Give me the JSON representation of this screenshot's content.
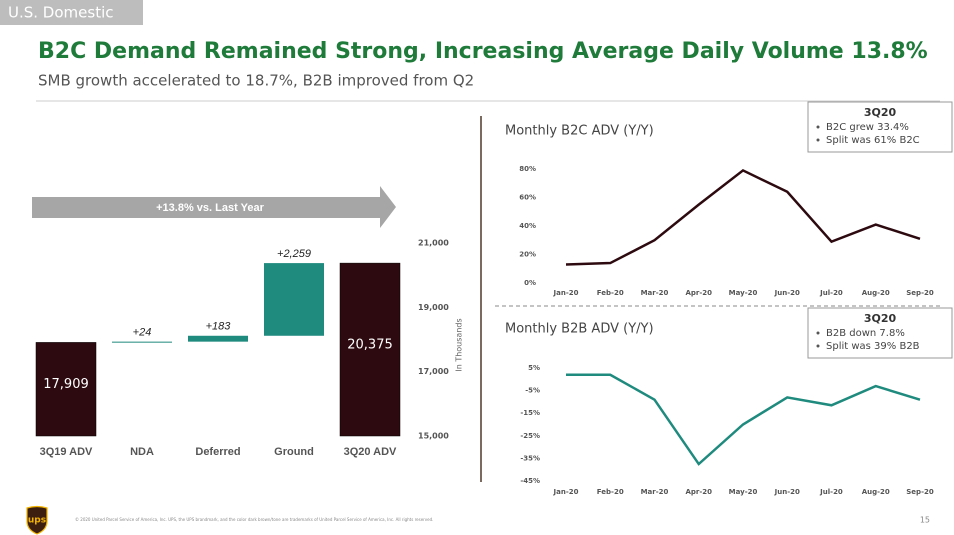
{
  "header": {
    "section": "U.S. Domestic",
    "title": "B2C Demand Remained Strong, Increasing Average Daily Volume 13.8%",
    "subtitle": "SMB growth accelerated to 18.7%, B2B improved from Q2"
  },
  "chart_data": [
    {
      "type": "waterfall",
      "annotation": "+13.8% vs. Last Year",
      "y_label": "In Thousands",
      "categories": [
        "3Q19 ADV",
        "NDA",
        "Deferred",
        "Ground",
        "3Q20 ADV"
      ],
      "values": [
        17909,
        24,
        183,
        2259,
        20375
      ],
      "value_labels": [
        "17,909",
        "+24",
        "+183",
        "+2,259",
        "20,375"
      ],
      "total_color": "#2d0a0f",
      "increase_color": "#1f8a7e",
      "ylim": [
        15000,
        21000
      ],
      "yticks": [
        {
          "value": 15000,
          "label": "15,000"
        },
        {
          "value": 17000,
          "label": "17,000"
        },
        {
          "value": 19000,
          "label": "19,000"
        },
        {
          "value": 21000,
          "label": "21,000"
        }
      ]
    },
    {
      "type": "line",
      "title": "Monthly B2C ADV (Y/Y)",
      "categories": [
        "Jan-20",
        "Feb-20",
        "Mar-20",
        "Apr-20",
        "May-20",
        "Jun-20",
        "Jul-20",
        "Aug-20",
        "Sep-20"
      ],
      "values": [
        13,
        14,
        30,
        55,
        79,
        64,
        29,
        41,
        31
      ],
      "color": "#2d0a0f",
      "ylim": [
        0,
        80
      ],
      "yticks": [
        {
          "value": 0,
          "label": "0%"
        },
        {
          "value": 20,
          "label": "20%"
        },
        {
          "value": 40,
          "label": "40%"
        },
        {
          "value": 60,
          "label": "60%"
        },
        {
          "value": 80,
          "label": "80%"
        }
      ],
      "callout": {
        "heading": "3Q20",
        "items": [
          "B2C grew 33.4%",
          "Split was 61% B2C"
        ]
      }
    },
    {
      "type": "line",
      "title": "Monthly B2B ADV (Y/Y)",
      "categories": [
        "Jan-20",
        "Feb-20",
        "Mar-20",
        "Apr-20",
        "May-20",
        "Jun-20",
        "Jul-20",
        "Aug-20",
        "Sep-20"
      ],
      "values": [
        2,
        2,
        -9,
        -37.5,
        -20,
        -8,
        -11.5,
        -3,
        -9
      ],
      "color": "#1f8a7e",
      "ylim": [
        -45,
        5
      ],
      "yticks": [
        {
          "value": 5,
          "label": "5%"
        },
        {
          "value": -5,
          "label": "-5%"
        },
        {
          "value": -15,
          "label": "-15%"
        },
        {
          "value": -25,
          "label": "-25%"
        },
        {
          "value": -35,
          "label": "-35%"
        },
        {
          "value": -45,
          "label": "-45%"
        }
      ],
      "callout": {
        "heading": "3Q20",
        "items": [
          "B2B down 7.8%",
          "Split was 39% B2B"
        ]
      }
    }
  ],
  "footer": {
    "logo": "ups",
    "copyright": "© 2020 United Parcel Service of America, Inc. UPS, the UPS brandmark, and the color dark brown/tone are trademarks of United Parcel Service of America, Inc. All rights reserved.",
    "page": "15"
  }
}
